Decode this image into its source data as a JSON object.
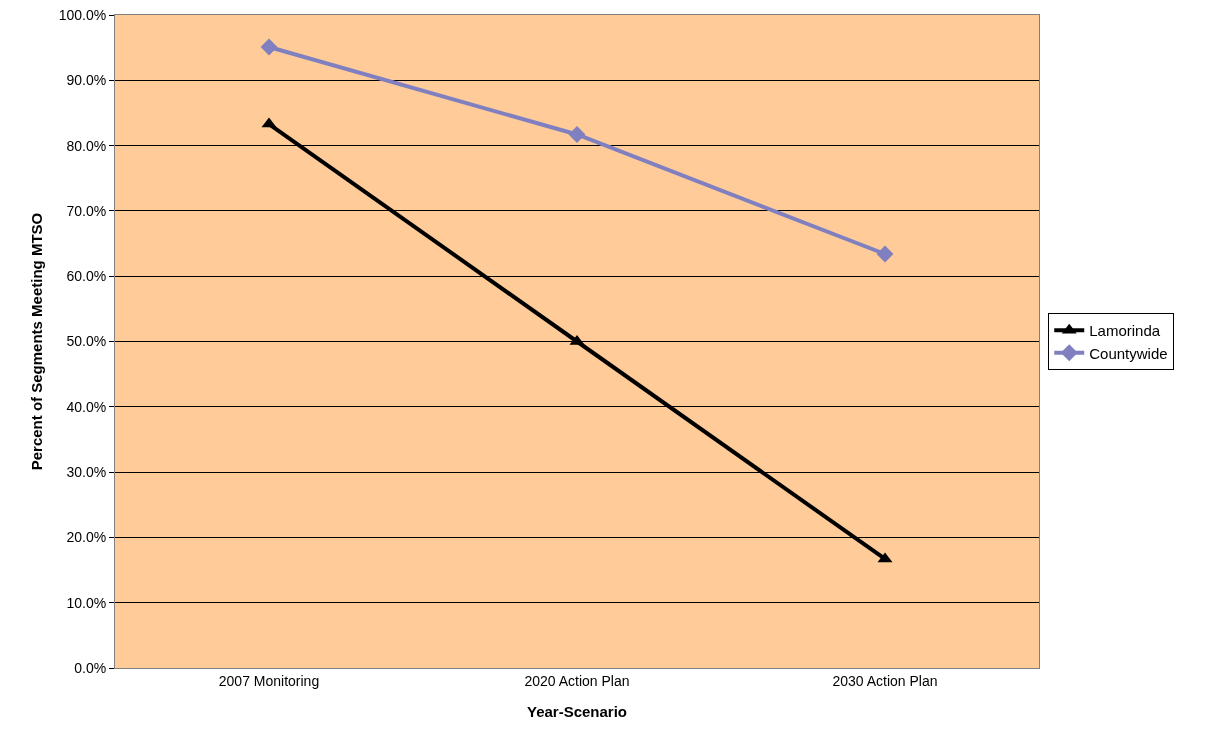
{
  "chart_data": {
    "type": "line",
    "xlabel": "Year-Scenario",
    "ylabel": "Percent of Segments Meeting MTSO",
    "categories": [
      "2007 Monitoring",
      "2020 Action Plan",
      "2030 Action Plan"
    ],
    "series": [
      {
        "name": "Lamorinda",
        "color": "#000000",
        "values": [
          83.3,
          50.0,
          16.7
        ],
        "marker": "triangle"
      },
      {
        "name": "Countywide",
        "color": "#8080c0",
        "values": [
          95.1,
          81.7,
          63.4
        ],
        "marker": "diamond"
      }
    ],
    "ylim": [
      0,
      100
    ],
    "yticks": [
      {
        "value": 0,
        "label": "0.0%"
      },
      {
        "value": 10,
        "label": "10.0%"
      },
      {
        "value": 20,
        "label": "20.0%"
      },
      {
        "value": 30,
        "label": "30.0%"
      },
      {
        "value": 40,
        "label": "40.0%"
      },
      {
        "value": 50,
        "label": "50.0%"
      },
      {
        "value": 60,
        "label": "60.0%"
      },
      {
        "value": 70,
        "label": "70.0%"
      },
      {
        "value": 80,
        "label": "80.0%"
      },
      {
        "value": 90,
        "label": "90.0%"
      },
      {
        "value": 100,
        "label": "100.0%"
      }
    ],
    "grid": "y",
    "legend": "right",
    "line_style": "solid"
  }
}
